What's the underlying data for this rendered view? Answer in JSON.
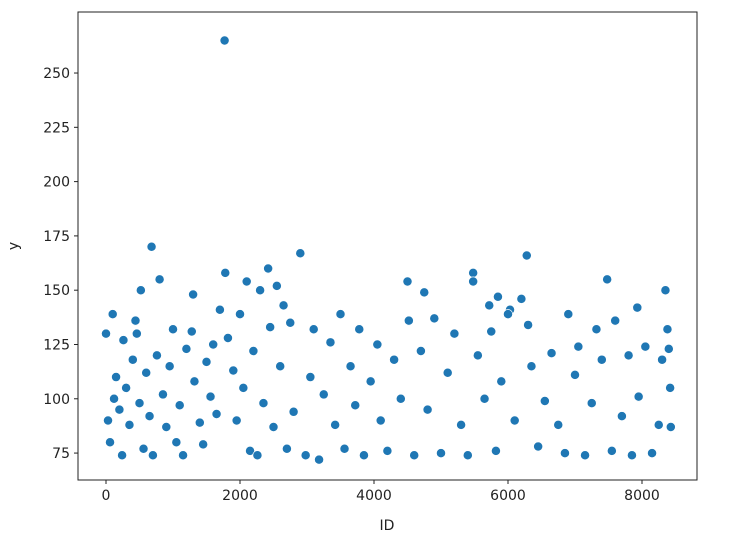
{
  "chart_data": {
    "type": "scatter",
    "color": "#1f77b4",
    "xlabel": "ID",
    "ylabel": "y",
    "xlim": [
      -418,
      8821
    ],
    "ylim": [
      62.6,
      278.1
    ],
    "xticks": [
      0,
      2000,
      4000,
      6000,
      8000
    ],
    "yticks": [
      75,
      100,
      125,
      150,
      175,
      200,
      225,
      250
    ],
    "x": [
      1770,
      680,
      6280,
      2900,
      1780,
      2420,
      5480,
      7480,
      800,
      4500,
      5480,
      2550,
      2100,
      520,
      8350,
      2300,
      4750,
      5850,
      6200,
      1300,
      7930,
      5720,
      2650,
      6030,
      1700,
      0,
      30,
      60,
      100,
      120,
      150,
      200,
      240,
      260,
      300,
      350,
      400,
      440,
      460,
      500,
      560,
      600,
      650,
      700,
      760,
      850,
      900,
      950,
      1000,
      1050,
      1100,
      1150,
      1200,
      1280,
      1320,
      1400,
      1450,
      1500,
      1560,
      1600,
      1650,
      1820,
      1900,
      1950,
      2000,
      2050,
      2150,
      2200,
      2260,
      2350,
      2450,
      2500,
      2600,
      2700,
      2750,
      2800,
      2980,
      3050,
      3100,
      3180,
      3250,
      3350,
      3420,
      3500,
      3560,
      3650,
      3720,
      3780,
      3850,
      3950,
      4050,
      4100,
      4200,
      4300,
      4400,
      4520,
      4600,
      4700,
      4800,
      4900,
      5000,
      5100,
      5200,
      5300,
      5400,
      5550,
      5650,
      5750,
      5820,
      5900,
      6000,
      6100,
      6300,
      6350,
      6450,
      6550,
      6650,
      6750,
      6850,
      6900,
      7000,
      7050,
      7150,
      7250,
      7320,
      7400,
      7550,
      7600,
      7700,
      7800,
      7850,
      7950,
      8050,
      8150,
      8250,
      8300,
      8380,
      8400,
      8420,
      8430
    ],
    "values": [
      265,
      170,
      166,
      167,
      158,
      160,
      158,
      155,
      155,
      154,
      154,
      152,
      154,
      150,
      150,
      150,
      149,
      147,
      146,
      148,
      142,
      143,
      143,
      141,
      141,
      130,
      90,
      80,
      139,
      100,
      110,
      95,
      74,
      127,
      105,
      88,
      118,
      136,
      130,
      98,
      77,
      112,
      92,
      74,
      120,
      102,
      87,
      115,
      132,
      80,
      97,
      74,
      123,
      131,
      108,
      89,
      79,
      117,
      101,
      125,
      93,
      128,
      113,
      90,
      139,
      105,
      76,
      122,
      74,
      98,
      133,
      87,
      115,
      77,
      135,
      94,
      74,
      110,
      132,
      72,
      102,
      126,
      88,
      139,
      77,
      115,
      97,
      132,
      74,
      108,
      125,
      90,
      76,
      118,
      100,
      136,
      74,
      122,
      95,
      137,
      75,
      112,
      130,
      88,
      74,
      120,
      100,
      131,
      76,
      108,
      139,
      90,
      134,
      115,
      78,
      99,
      121,
      88,
      75,
      139,
      111,
      124,
      74,
      98,
      132,
      118,
      76,
      136,
      92,
      120,
      74,
      101,
      124,
      75,
      88,
      118,
      132,
      123,
      105,
      87
    ]
  }
}
